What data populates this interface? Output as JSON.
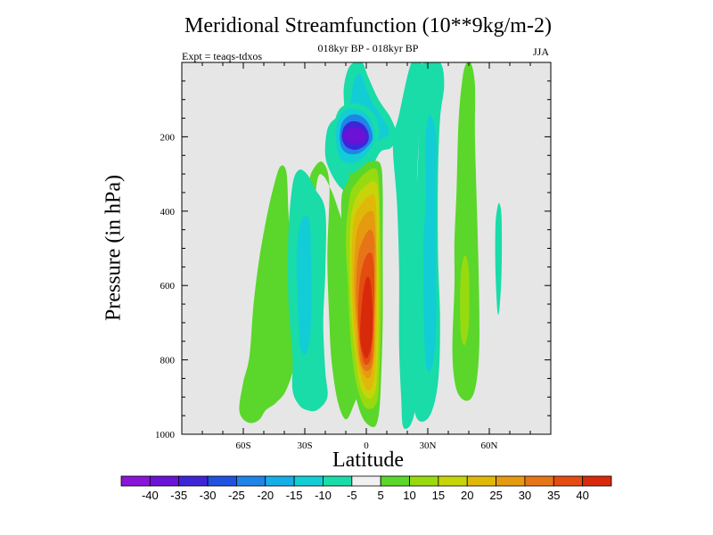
{
  "chart_data": {
    "type": "heatmap",
    "title": "Meridional Streamfunction (10**9kg/m-2)",
    "subtitle": "018kyr BP - 018kyr BP",
    "experiment": "Expt = teaqs-tdxos",
    "season": "JJA",
    "xlabel": "Latitude",
    "ylabel": "Pressure (in hPa)",
    "xlim": [
      -90,
      90
    ],
    "ylim": [
      0,
      1000
    ],
    "x_ticks": [
      {
        "value": -60,
        "label": "60S"
      },
      {
        "value": -30,
        "label": "30S"
      },
      {
        "value": 0,
        "label": "0"
      },
      {
        "value": 30,
        "label": "30N"
      },
      {
        "value": 60,
        "label": "60N"
      }
    ],
    "y_ticks": [
      {
        "value": 200,
        "label": "200"
      },
      {
        "value": 400,
        "label": "400"
      },
      {
        "value": 600,
        "label": "600"
      },
      {
        "value": 800,
        "label": "800"
      },
      {
        "value": 1000,
        "label": "1000"
      }
    ],
    "background_color": "#e6e6e6",
    "colorbar": {
      "labels": [
        "-40",
        "-35",
        "-30",
        "-25",
        "-20",
        "-15",
        "-10",
        "-5",
        "5",
        "10",
        "15",
        "20",
        "25",
        "30",
        "35",
        "40"
      ],
      "colors": [
        "#8a15d8",
        "#6a12d6",
        "#3f25d8",
        "#1e52e0",
        "#1f84e8",
        "#16aee6",
        "#12cdd6",
        "#19dca8",
        "#f0f0f0",
        "#5ad72a",
        "#98da10",
        "#c8d40a",
        "#e0b80a",
        "#e59a10",
        "#e77518",
        "#e44d10",
        "#d82a0a"
      ]
    },
    "features": [
      {
        "name": "southern-upper-cell-center",
        "lat": -8,
        "p": 200,
        "value": -40,
        "level": 1
      },
      {
        "name": "southern-upper-cell-mid",
        "lat": -8,
        "p": 200,
        "value": -30,
        "level": 2
      },
      {
        "name": "southern-upper-cell-edge",
        "lat": -8,
        "p": 200,
        "value": -20,
        "level": 4
      },
      {
        "name": "southern-upper-cell-outer",
        "lat": -8,
        "p": 200,
        "value": -10,
        "level": 6
      },
      {
        "name": "southern-upper-cell-rim",
        "lat": -8,
        "p": 200,
        "value": -5,
        "level": 7
      },
      {
        "name": "hadley-cell-rim",
        "lat": 0,
        "p": 620,
        "value": 5,
        "level": 9
      },
      {
        "name": "hadley-cell-10",
        "lat": 1,
        "p": 620,
        "value": 10,
        "level": 10
      },
      {
        "name": "hadley-cell-15",
        "lat": 1,
        "p": 620,
        "value": 15,
        "level": 11
      },
      {
        "name": "hadley-cell-20",
        "lat": 1,
        "p": 620,
        "value": 20,
        "level": 12
      },
      {
        "name": "hadley-cell-25",
        "lat": 1,
        "p": 620,
        "value": 25,
        "level": 13
      },
      {
        "name": "hadley-cell-30",
        "lat": 2,
        "p": 640,
        "value": 30,
        "level": 14
      },
      {
        "name": "hadley-cell-35",
        "lat": 2,
        "p": 650,
        "value": 35,
        "level": 15
      },
      {
        "name": "hadley-cell-40",
        "lat": 2,
        "p": 650,
        "value": 40,
        "level": 16
      },
      {
        "name": "southern-ferrel-outer",
        "lat": -30,
        "p": 600,
        "value": 5,
        "level": 9
      },
      {
        "name": "southern-ferrel-inner",
        "lat": -30,
        "p": 600,
        "value": -5,
        "level": 7
      },
      {
        "name": "southern-ferrel-core",
        "lat": -30,
        "p": 600,
        "value": -10,
        "level": 6
      },
      {
        "name": "southern-polar-cell",
        "lat": -52,
        "p": 700,
        "value": 5,
        "level": 9
      },
      {
        "name": "northern-ferrel-outer",
        "lat": 30,
        "p": 450,
        "value": -5,
        "level": 7
      },
      {
        "name": "northern-ferrel-core",
        "lat": 32,
        "p": 450,
        "value": -10,
        "level": 6
      },
      {
        "name": "northern-cell-outer",
        "lat": 50,
        "p": 400,
        "value": 5,
        "level": 9
      },
      {
        "name": "northern-cell-core",
        "lat": 48,
        "p": 450,
        "value": 10,
        "level": 10
      },
      {
        "name": "northern-tropopause-cell",
        "lat": 25,
        "p": 200,
        "value": -5,
        "level": 7
      },
      {
        "name": "tropical-upper-cell",
        "lat": -4,
        "p": 100,
        "value": -5,
        "level": 7
      },
      {
        "name": "tropical-upper-cell-inner",
        "lat": -3,
        "p": 110,
        "value": -10,
        "level": 6
      },
      {
        "name": "arctic-streak",
        "lat": 65,
        "p": 500,
        "value": -5,
        "level": 7
      }
    ]
  }
}
